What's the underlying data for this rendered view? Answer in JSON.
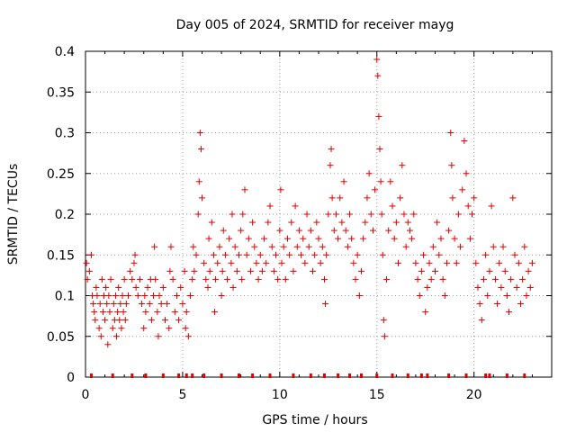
{
  "chart_data": {
    "type": "scatter",
    "title": "Day 005 of 2024, SRMTID for receiver mayg",
    "xlabel": "GPS time / hours",
    "ylabel": "SRMTID / TECUs",
    "xlim": [
      0,
      24
    ],
    "ylim": [
      0,
      0.4
    ],
    "x_ticks": [
      0,
      5,
      10,
      15,
      20
    ],
    "x_tick_labels": [
      "0",
      "5",
      "10",
      "15",
      "20"
    ],
    "y_ticks": [
      0,
      0.05,
      0.1,
      0.15,
      0.2,
      0.25,
      0.3,
      0.35,
      0.4
    ],
    "y_tick_labels": [
      "0",
      "0.05",
      "0.1",
      "0.15",
      "0.2",
      "0.25",
      "0.3",
      "0.35",
      "0.4"
    ],
    "grid": true,
    "marker": "plus",
    "color": "#e00000",
    "series": [
      {
        "name": "SRMTID",
        "points": [
          [
            0.05,
            0.14
          ],
          [
            0.1,
            0.12
          ],
          [
            0.2,
            0.13
          ],
          [
            0.3,
            0.15
          ],
          [
            0.35,
            0.1
          ],
          [
            0.4,
            0.09
          ],
          [
            0.45,
            0.08
          ],
          [
            0.5,
            0.07
          ],
          [
            0.55,
            0.11
          ],
          [
            0.6,
            0.1
          ],
          [
            0.7,
            0.06
          ],
          [
            0.75,
            0.09
          ],
          [
            0.8,
            0.05
          ],
          [
            0.85,
            0.12
          ],
          [
            0.9,
            0.08
          ],
          [
            0.95,
            0.1
          ],
          [
            1.0,
            0.07
          ],
          [
            1.05,
            0.11
          ],
          [
            1.1,
            0.09
          ],
          [
            1.15,
            0.04
          ],
          [
            1.2,
            0.1
          ],
          [
            1.25,
            0.08
          ],
          [
            1.3,
            0.12
          ],
          [
            1.4,
            0.06
          ],
          [
            1.45,
            0.09
          ],
          [
            1.5,
            0.07
          ],
          [
            1.55,
            0.1
          ],
          [
            1.6,
            0.05
          ],
          [
            1.65,
            0.08
          ],
          [
            1.7,
            0.11
          ],
          [
            1.75,
            0.07
          ],
          [
            1.8,
            0.09
          ],
          [
            1.85,
            0.06
          ],
          [
            1.9,
            0.1
          ],
          [
            1.95,
            0.08
          ],
          [
            2.0,
            0.12
          ],
          [
            2.05,
            0.07
          ],
          [
            2.1,
            0.09
          ],
          [
            2.2,
            0.1
          ],
          [
            2.3,
            0.13
          ],
          [
            2.4,
            0.12
          ],
          [
            2.5,
            0.14
          ],
          [
            2.55,
            0.15
          ],
          [
            2.6,
            0.11
          ],
          [
            2.7,
            0.1
          ],
          [
            2.8,
            0.12
          ],
          [
            2.9,
            0.09
          ],
          [
            3.0,
            0.06
          ],
          [
            3.05,
            0.1
          ],
          [
            3.1,
            0.08
          ],
          [
            3.2,
            0.11
          ],
          [
            3.3,
            0.09
          ],
          [
            3.35,
            0.12
          ],
          [
            3.4,
            0.07
          ],
          [
            3.5,
            0.1
          ],
          [
            3.55,
            0.16
          ],
          [
            3.6,
            0.12
          ],
          [
            3.7,
            0.08
          ],
          [
            3.75,
            0.05
          ],
          [
            3.8,
            0.1
          ],
          [
            3.9,
            0.09
          ],
          [
            4.0,
            0.11
          ],
          [
            4.1,
            0.07
          ],
          [
            4.2,
            0.09
          ],
          [
            4.3,
            0.06
          ],
          [
            4.35,
            0.13
          ],
          [
            4.4,
            0.16
          ],
          [
            4.5,
            0.12
          ],
          [
            4.6,
            0.08
          ],
          [
            4.7,
            0.1
          ],
          [
            4.8,
            0.07
          ],
          [
            4.9,
            0.11
          ],
          [
            5.0,
            0.09
          ],
          [
            5.1,
            0.13
          ],
          [
            5.15,
            0.06
          ],
          [
            5.2,
            0.08
          ],
          [
            5.3,
            0.05
          ],
          [
            5.4,
            0.1
          ],
          [
            5.5,
            0.12
          ],
          [
            5.55,
            0.16
          ],
          [
            5.6,
            0.13
          ],
          [
            5.7,
            0.15
          ],
          [
            5.8,
            0.2
          ],
          [
            5.85,
            0.24
          ],
          [
            5.9,
            0.3
          ],
          [
            5.95,
            0.28
          ],
          [
            6.0,
            0.22
          ],
          [
            6.1,
            0.14
          ],
          [
            6.2,
            0.12
          ],
          [
            6.3,
            0.11
          ],
          [
            6.35,
            0.17
          ],
          [
            6.4,
            0.13
          ],
          [
            6.5,
            0.19
          ],
          [
            6.6,
            0.15
          ],
          [
            6.65,
            0.08
          ],
          [
            6.7,
            0.12
          ],
          [
            6.8,
            0.14
          ],
          [
            6.9,
            0.16
          ],
          [
            7.0,
            0.1
          ],
          [
            7.05,
            0.13
          ],
          [
            7.1,
            0.18
          ],
          [
            7.2,
            0.15
          ],
          [
            7.3,
            0.12
          ],
          [
            7.4,
            0.17
          ],
          [
            7.5,
            0.14
          ],
          [
            7.55,
            0.2
          ],
          [
            7.6,
            0.11
          ],
          [
            7.7,
            0.16
          ],
          [
            7.8,
            0.13
          ],
          [
            7.9,
            0.15
          ],
          [
            8.0,
            0.18
          ],
          [
            8.05,
            0.12
          ],
          [
            8.1,
            0.2
          ],
          [
            8.2,
            0.23
          ],
          [
            8.3,
            0.15
          ],
          [
            8.4,
            0.17
          ],
          [
            8.5,
            0.13
          ],
          [
            8.6,
            0.19
          ],
          [
            8.7,
            0.16
          ],
          [
            8.8,
            0.14
          ],
          [
            8.9,
            0.12
          ],
          [
            9.0,
            0.15
          ],
          [
            9.1,
            0.13
          ],
          [
            9.2,
            0.17
          ],
          [
            9.3,
            0.14
          ],
          [
            9.4,
            0.19
          ],
          [
            9.5,
            0.21
          ],
          [
            9.6,
            0.16
          ],
          [
            9.7,
            0.13
          ],
          [
            9.8,
            0.15
          ],
          [
            9.9,
            0.12
          ],
          [
            10.0,
            0.18
          ],
          [
            10.05,
            0.23
          ],
          [
            10.1,
            0.14
          ],
          [
            10.2,
            0.16
          ],
          [
            10.3,
            0.12
          ],
          [
            10.4,
            0.17
          ],
          [
            10.5,
            0.15
          ],
          [
            10.6,
            0.19
          ],
          [
            10.7,
            0.13
          ],
          [
            10.8,
            0.21
          ],
          [
            10.9,
            0.16
          ],
          [
            11.0,
            0.18
          ],
          [
            11.1,
            0.15
          ],
          [
            11.2,
            0.17
          ],
          [
            11.3,
            0.14
          ],
          [
            11.4,
            0.2
          ],
          [
            11.5,
            0.16
          ],
          [
            11.6,
            0.18
          ],
          [
            11.7,
            0.13
          ],
          [
            11.8,
            0.15
          ],
          [
            11.9,
            0.19
          ],
          [
            12.0,
            0.17
          ],
          [
            12.1,
            0.14
          ],
          [
            12.2,
            0.16
          ],
          [
            12.3,
            0.12
          ],
          [
            12.35,
            0.09
          ],
          [
            12.4,
            0.15
          ],
          [
            12.5,
            0.2
          ],
          [
            12.6,
            0.26
          ],
          [
            12.65,
            0.28
          ],
          [
            12.7,
            0.22
          ],
          [
            12.8,
            0.18
          ],
          [
            12.9,
            0.2
          ],
          [
            13.0,
            0.17
          ],
          [
            13.1,
            0.22
          ],
          [
            13.2,
            0.19
          ],
          [
            13.3,
            0.24
          ],
          [
            13.4,
            0.18
          ],
          [
            13.5,
            0.16
          ],
          [
            13.6,
            0.2
          ],
          [
            13.7,
            0.17
          ],
          [
            13.8,
            0.14
          ],
          [
            13.9,
            0.12
          ],
          [
            14.0,
            0.15
          ],
          [
            14.1,
            0.1
          ],
          [
            14.2,
            0.13
          ],
          [
            14.3,
            0.17
          ],
          [
            14.4,
            0.19
          ],
          [
            14.5,
            0.22
          ],
          [
            14.6,
            0.25
          ],
          [
            14.7,
            0.2
          ],
          [
            14.8,
            0.18
          ],
          [
            14.9,
            0.23
          ],
          [
            15.0,
            0.39
          ],
          [
            15.05,
            0.37
          ],
          [
            15.1,
            0.32
          ],
          [
            15.15,
            0.28
          ],
          [
            15.2,
            0.24
          ],
          [
            15.25,
            0.2
          ],
          [
            15.3,
            0.15
          ],
          [
            15.35,
            0.07
          ],
          [
            15.4,
            0.05
          ],
          [
            15.5,
            0.12
          ],
          [
            15.6,
            0.18
          ],
          [
            15.7,
            0.24
          ],
          [
            15.8,
            0.21
          ],
          [
            15.9,
            0.17
          ],
          [
            16.0,
            0.19
          ],
          [
            16.1,
            0.14
          ],
          [
            16.2,
            0.22
          ],
          [
            16.3,
            0.26
          ],
          [
            16.4,
            0.2
          ],
          [
            16.5,
            0.16
          ],
          [
            16.6,
            0.19
          ],
          [
            16.7,
            0.18
          ],
          [
            16.8,
            0.17
          ],
          [
            16.9,
            0.2
          ],
          [
            17.0,
            0.14
          ],
          [
            17.1,
            0.12
          ],
          [
            17.2,
            0.1
          ],
          [
            17.3,
            0.13
          ],
          [
            17.4,
            0.15
          ],
          [
            17.5,
            0.08
          ],
          [
            17.6,
            0.11
          ],
          [
            17.7,
            0.14
          ],
          [
            17.8,
            0.12
          ],
          [
            17.9,
            0.16
          ],
          [
            18.0,
            0.13
          ],
          [
            18.1,
            0.19
          ],
          [
            18.2,
            0.15
          ],
          [
            18.3,
            0.17
          ],
          [
            18.4,
            0.12
          ],
          [
            18.5,
            0.1
          ],
          [
            18.6,
            0.14
          ],
          [
            18.7,
            0.18
          ],
          [
            18.8,
            0.3
          ],
          [
            18.85,
            0.26
          ],
          [
            18.9,
            0.22
          ],
          [
            19.0,
            0.17
          ],
          [
            19.1,
            0.14
          ],
          [
            19.2,
            0.2
          ],
          [
            19.3,
            0.16
          ],
          [
            19.4,
            0.23
          ],
          [
            19.5,
            0.29
          ],
          [
            19.6,
            0.25
          ],
          [
            19.7,
            0.21
          ],
          [
            19.8,
            0.17
          ],
          [
            19.9,
            0.2
          ],
          [
            20.0,
            0.22
          ],
          [
            20.1,
            0.14
          ],
          [
            20.2,
            0.11
          ],
          [
            20.3,
            0.09
          ],
          [
            20.4,
            0.07
          ],
          [
            20.5,
            0.12
          ],
          [
            20.6,
            0.15
          ],
          [
            20.7,
            0.1
          ],
          [
            20.8,
            0.13
          ],
          [
            20.9,
            0.21
          ],
          [
            21.0,
            0.16
          ],
          [
            21.1,
            0.12
          ],
          [
            21.2,
            0.09
          ],
          [
            21.3,
            0.14
          ],
          [
            21.4,
            0.11
          ],
          [
            21.5,
            0.16
          ],
          [
            21.6,
            0.13
          ],
          [
            21.7,
            0.1
          ],
          [
            21.8,
            0.08
          ],
          [
            21.9,
            0.12
          ],
          [
            22.0,
            0.22
          ],
          [
            22.1,
            0.15
          ],
          [
            22.2,
            0.11
          ],
          [
            22.3,
            0.14
          ],
          [
            22.4,
            0.09
          ],
          [
            22.5,
            0.12
          ],
          [
            22.6,
            0.16
          ],
          [
            22.7,
            0.1
          ],
          [
            22.8,
            0.13
          ],
          [
            22.9,
            0.11
          ],
          [
            23.0,
            0.14
          ]
        ]
      }
    ],
    "zero_points": [
      0.3,
      1.4,
      2.4,
      3.1,
      4.0,
      4.8,
      5.2,
      5.5,
      6.1,
      7.0,
      7.9,
      8.6,
      9.5,
      10.7,
      11.6,
      12.3,
      13.0,
      13.6,
      14.2,
      15.0,
      15.8,
      16.6,
      17.3,
      17.6,
      18.7,
      19.6,
      20.6,
      20.8,
      21.7,
      22.6
    ]
  }
}
